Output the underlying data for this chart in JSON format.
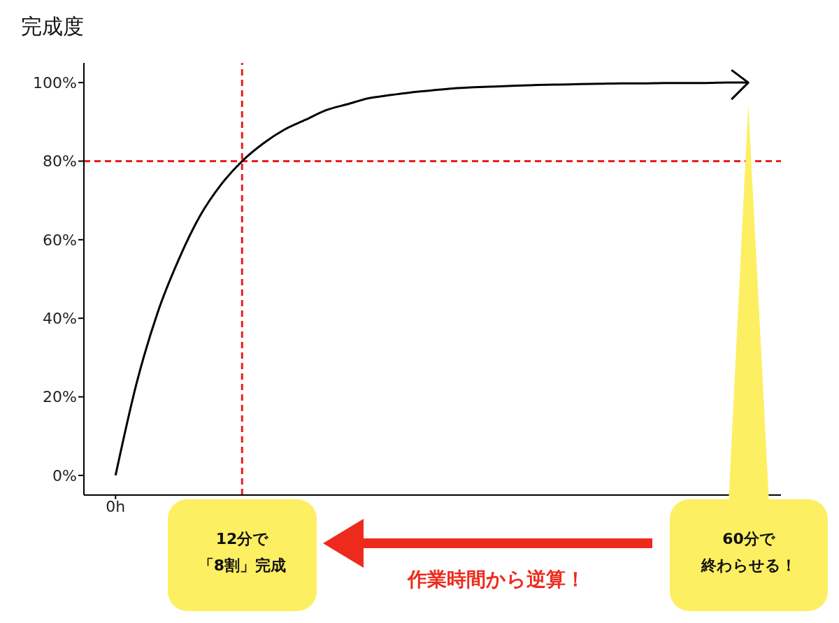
{
  "chart_data": {
    "type": "line",
    "ylabel": "完成度",
    "categories": [
      "0h",
      null,
      null,
      null,
      null,
      null,
      null,
      null,
      null,
      null,
      null,
      null,
      null,
      null,
      null,
      null,
      null,
      null,
      null,
      null,
      null,
      null,
      null,
      null,
      null,
      null,
      null,
      null,
      null,
      null,
      null
    ],
    "series": [
      {
        "color": "#000000",
        "values": [
          0,
          23.5,
          41.5,
          55,
          66,
          74,
          80,
          84.5,
          88,
          90.5,
          93,
          94.5,
          96,
          96.8,
          97.5,
          98,
          98.5,
          98.8,
          99,
          99.2,
          99.4,
          99.5,
          99.6,
          99.7,
          99.8,
          99.8,
          99.9,
          99.9,
          99.9,
          100,
          100
        ]
      }
    ],
    "ylim": [
      -5,
      105
    ],
    "yticks": [
      {
        "value": 0,
        "label": "0%"
      },
      {
        "value": 20,
        "label": "20%"
      },
      {
        "value": 40,
        "label": "40%"
      },
      {
        "value": 60,
        "label": "60%"
      },
      {
        "value": 80,
        "label": "80%"
      },
      {
        "value": 100,
        "label": "100%"
      }
    ],
    "ref_lines": [
      {
        "axis": "y",
        "value": 80,
        "color": "#ee1c1c",
        "line_style": "dashed"
      }
    ],
    "annotations": [
      "12分で",
      "「8割」完成",
      "60分で",
      "終わらせる！",
      "作業時間から逆算！"
    ],
    "grid": false,
    "legend": false,
    "marker": "none",
    "line_style": "solid"
  }
}
